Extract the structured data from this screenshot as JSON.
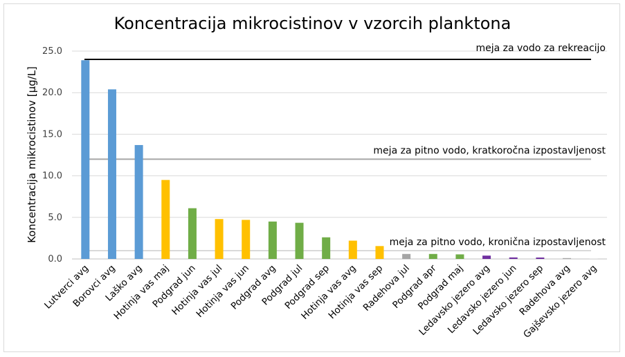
{
  "chart_data": {
    "type": "bar",
    "title": "Koncentracija mikrocistinov v vzorcih planktona",
    "ylabel": "Koncentracija mikrocistinov [µg/L]",
    "xlabel": "",
    "ylim": [
      0,
      25
    ],
    "yticks": [
      "0.0",
      "5.0",
      "10.0",
      "15.0",
      "20.0",
      "25.0"
    ],
    "ytick_values": [
      0,
      5,
      10,
      15,
      20,
      25
    ],
    "grid": true,
    "categories": [
      "Lutverci avg",
      "Borovci avg",
      "Laško avg",
      "Hotinja vas maj",
      "Podgrad jun",
      "Hotinja vas jul",
      "Hotinja vas jun",
      "Podgrad avg",
      "Podgrad jul",
      "Podgrad sep",
      "Hotinja vas avg",
      "Hotinja vas sep",
      "Radehova jul",
      "Podgrad apr",
      "Podgrad maj",
      "Ledavsko jezero avg",
      "Ledavsko jezero jun",
      "Ledavsko jezero sep",
      "Radehova avg",
      "Gajševsko jezero avg"
    ],
    "values": [
      23.9,
      20.4,
      13.7,
      9.5,
      6.1,
      4.8,
      4.7,
      4.5,
      4.35,
      2.6,
      2.2,
      1.55,
      0.6,
      0.6,
      0.55,
      0.4,
      0.18,
      0.17,
      0.1,
      0.03
    ],
    "colors": [
      "#5b9bd5",
      "#5b9bd5",
      "#5b9bd5",
      "#ffc000",
      "#70ad47",
      "#ffc000",
      "#ffc000",
      "#70ad47",
      "#70ad47",
      "#70ad47",
      "#ffc000",
      "#ffc000",
      "#a5a5a5",
      "#70ad47",
      "#70ad47",
      "#7030a0",
      "#7030a0",
      "#7030a0",
      "#a5a5a5",
      "#d9d9d9"
    ],
    "reference_lines": [
      {
        "label": "meja za vodo za rekreacijo",
        "value": 24,
        "color": "#000000"
      },
      {
        "label": "meja za pitno vodo, kratkoročna izpostavljenost",
        "value": 12,
        "color": "#a6a6a6"
      },
      {
        "label": "meja za pitno vodo, kronična izpostavljenost",
        "value": 1,
        "color": "#d9d9d9"
      }
    ]
  }
}
